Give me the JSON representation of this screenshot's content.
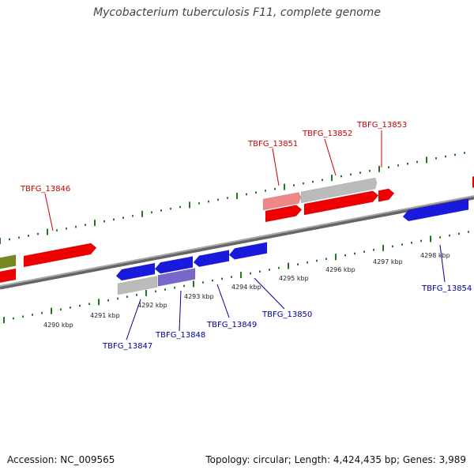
{
  "title": "Mycobacterium tuberculosis F11, complete genome",
  "footer": {
    "accession_label": "Accession:",
    "accession": "NC_009565",
    "topology": "Topology: circular; Length: 4,424,435 bp; Genes: 3,989"
  },
  "colors": {
    "forward": "#ee0000",
    "forward_light": "#ee8888",
    "reverse": "#1a1add",
    "reverse_light": "#7766cc",
    "gray": "#bbbbbb",
    "olive": "#778822",
    "tick": "#227722",
    "backbone": "#888888",
    "label_top": "#cc0000",
    "label_bottom": "#000099"
  },
  "kbp_labels": [
    "4290 kbp",
    "4291 kbp",
    "4292 kbp",
    "4293 kbp",
    "4294 kbp",
    "4295 kbp",
    "4296 kbp",
    "4297 kbp",
    "4298 kbp"
  ],
  "gene_labels_top": [
    "TBFG_13846",
    "TBFG_13851",
    "TBFG_13852",
    "TBFG_13853"
  ],
  "gene_labels_bottom": [
    "TBFG_13847",
    "TBFG_13848",
    "TBFG_13849",
    "TBFG_13850",
    "TBFG_13854"
  ]
}
